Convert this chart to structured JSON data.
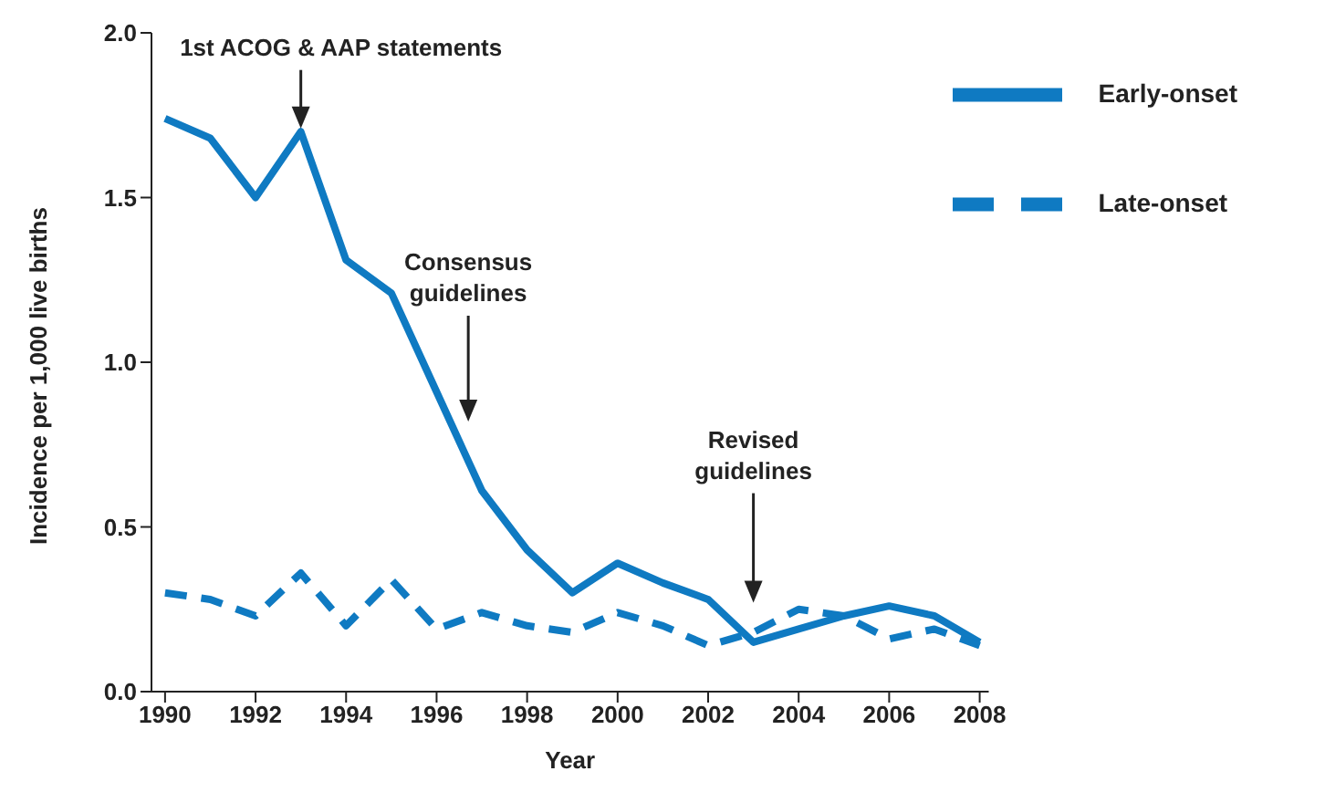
{
  "chart_data": {
    "type": "line",
    "xlabel": "Year",
    "ylabel": "Incidence per 1,000 live births",
    "x": [
      1990,
      1991,
      1992,
      1993,
      1994,
      1995,
      1996,
      1997,
      1998,
      1999,
      2000,
      2001,
      2002,
      2003,
      2004,
      2005,
      2006,
      2007,
      2008
    ],
    "series": [
      {
        "name": "Early-onset",
        "color": "#0f7ac2",
        "line_style": "solid",
        "values": [
          1.74,
          1.68,
          1.5,
          1.7,
          1.31,
          1.21,
          0.91,
          0.61,
          0.43,
          0.3,
          0.39,
          0.33,
          0.28,
          0.15,
          0.19,
          0.23,
          0.26,
          0.23,
          0.15
        ]
      },
      {
        "name": "Late-onset",
        "color": "#0f7ac2",
        "line_style": "dashed",
        "values": [
          0.3,
          0.28,
          0.23,
          0.36,
          0.2,
          0.34,
          0.19,
          0.24,
          0.2,
          0.18,
          0.24,
          0.2,
          0.14,
          0.18,
          0.25,
          0.23,
          0.16,
          0.19,
          0.14
        ]
      }
    ],
    "xlim": [
      1989.7,
      2008.2
    ],
    "xticks": [
      1990,
      1992,
      1994,
      1996,
      1998,
      2000,
      2002,
      2004,
      2006,
      2008
    ],
    "ylim": [
      0,
      2
    ],
    "yticks": [
      {
        "value": 0,
        "label": "0.0"
      },
      {
        "value": 0.5,
        "label": "0.5"
      },
      {
        "value": 1,
        "label": "1.0"
      },
      {
        "value": 1.5,
        "label": "1.5"
      },
      {
        "value": 2,
        "label": "2.0"
      }
    ],
    "grid": false,
    "legend": "top right",
    "marker": "none",
    "annotations": [
      "1st ACOG & AAP statements",
      "Consensus guidelines",
      "Revised guidelines"
    ]
  }
}
